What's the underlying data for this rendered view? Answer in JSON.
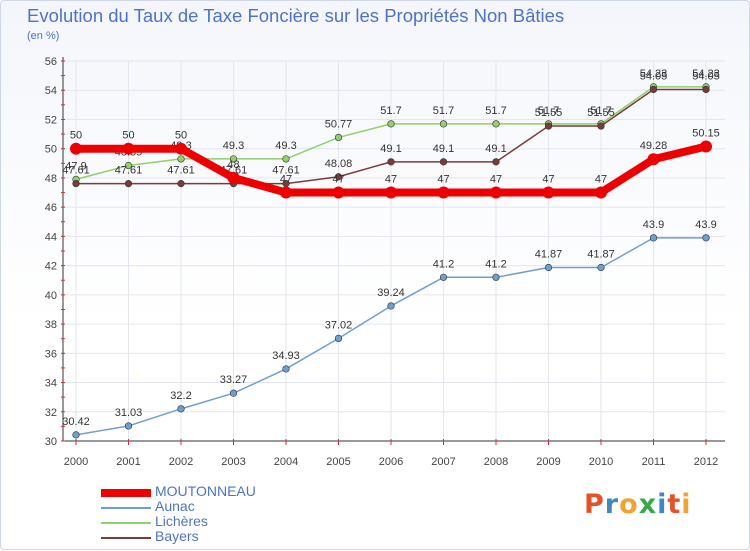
{
  "title": "Evolution du Taux de Taxe Foncière sur les Propriétés Non Bâties",
  "subtitle": "(en %)",
  "logo_text": "Proxiti",
  "chart_data": {
    "type": "line",
    "title": "Evolution du Taux de Taxe Foncière sur les Propriétés Non Bâties",
    "ylabel": "(en %)",
    "xlabel": "",
    "x": [
      "2000",
      "2001",
      "2002",
      "2003",
      "2004",
      "2005",
      "2006",
      "2007",
      "2008",
      "2009",
      "2010",
      "2011",
      "2012"
    ],
    "ylim": [
      30,
      56
    ],
    "yticks": [
      30,
      32,
      34,
      36,
      38,
      40,
      42,
      44,
      46,
      48,
      50,
      52,
      54,
      56
    ],
    "grid": true,
    "legend_position": "bottom-left",
    "series": [
      {
        "name": "Lichères",
        "color": "#8fd16a",
        "labels": [
          "47.9",
          "48.85",
          "49.3",
          "49.3",
          "49.3",
          "50.77",
          "51.7",
          "51.7",
          "51.7",
          "51.7",
          "51.7",
          "54.23",
          "54.23"
        ],
        "values": [
          47.9,
          48.85,
          49.3,
          49.3,
          49.3,
          50.77,
          51.7,
          51.7,
          51.7,
          51.7,
          51.7,
          54.23,
          54.23
        ]
      },
      {
        "name": "Bayers",
        "color": "#7a3b3b",
        "labels": [
          "47.61",
          "47.61",
          "47.61",
          "47.61",
          "47.61",
          "48.08",
          "49.1",
          "49.1",
          "49.1",
          "51.55",
          "51.55",
          "54.05",
          "54.05"
        ],
        "values": [
          47.61,
          47.61,
          47.61,
          47.61,
          47.61,
          48.08,
          49.1,
          49.1,
          49.1,
          51.55,
          51.55,
          54.05,
          54.05
        ]
      },
      {
        "name": "Aunac",
        "color": "#6f9fd0",
        "labels": [
          "30.42",
          "31.03",
          "32.2",
          "33.27",
          "34.93",
          "37.02",
          "39.24",
          "41.2",
          "41.2",
          "41.87",
          "41.87",
          "43.9",
          "43.9"
        ],
        "values": [
          30.42,
          31.03,
          32.2,
          33.27,
          34.93,
          37.02,
          39.24,
          41.2,
          41.2,
          41.87,
          41.87,
          43.9,
          43.9
        ]
      },
      {
        "name": "MOUTONNEAU",
        "color": "#ee0000",
        "labels": [
          "50",
          "50",
          "50",
          "48",
          "47",
          "47",
          "47",
          "47",
          "47",
          "47",
          "47",
          "49.28",
          "50.15"
        ],
        "values": [
          50,
          50,
          50,
          48,
          47,
          47,
          47,
          47,
          47,
          47,
          47,
          49.28,
          50.15
        ]
      }
    ],
    "legend_order": [
      "MOUTONNEAU",
      "Aunac",
      "Lichères",
      "Bayers"
    ]
  }
}
